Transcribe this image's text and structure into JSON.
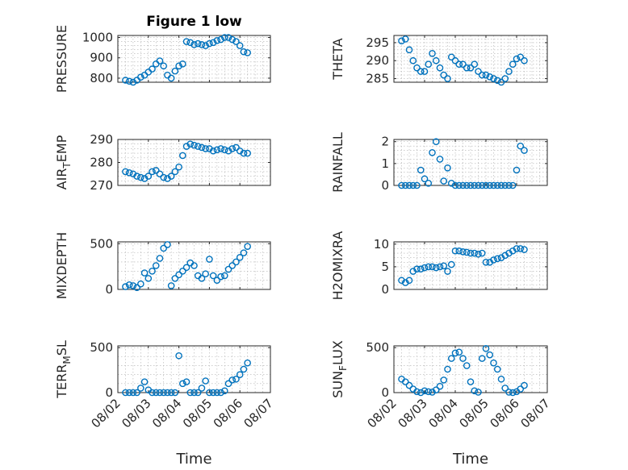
{
  "figure": {
    "marker_color": "#0072BD",
    "axis_color": "#262626",
    "grid": true,
    "minor_grid": true
  },
  "chart_data": [
    {
      "type": "scatter",
      "title": "Figure 1 low",
      "ylabel": "PRESSURE",
      "xlabel": "",
      "xlim": [
        "08/02",
        "08/07"
      ],
      "ylim": [
        780,
        1010
      ],
      "yticks": [
        800,
        900,
        1000
      ],
      "xticks": [
        "08/02",
        "08/03",
        "08/04",
        "08/05",
        "08/06",
        "08/07"
      ],
      "show_xtick_labels": false,
      "x": [
        "08/02 06:00",
        "08/02 09:00",
        "08/02 12:00",
        "08/02 15:00",
        "08/02 18:00",
        "08/02 21:00",
        "08/03 00:00",
        "08/03 03:00",
        "08/03 06:00",
        "08/03 09:00",
        "08/03 12:00",
        "08/03 15:00",
        "08/03 18:00",
        "08/03 21:00",
        "08/04 00:00",
        "08/04 03:00",
        "08/04 06:00",
        "08/04 09:00",
        "08/04 12:00",
        "08/04 15:00",
        "08/04 18:00",
        "08/04 21:00",
        "08/05 00:00",
        "08/05 03:00",
        "08/05 06:00",
        "08/05 09:00",
        "08/05 12:00",
        "08/05 15:00",
        "08/05 18:00",
        "08/05 21:00",
        "08/06 00:00",
        "08/06 03:00",
        "08/06 06:00"
      ],
      "y": [
        790,
        785,
        780,
        790,
        805,
        815,
        830,
        845,
        870,
        885,
        860,
        815,
        800,
        835,
        860,
        870,
        980,
        975,
        965,
        970,
        965,
        960,
        970,
        975,
        985,
        990,
        1000,
        1000,
        990,
        980,
        960,
        930,
        925
      ]
    },
    {
      "type": "scatter",
      "ylabel": "THETA",
      "xlabel": "",
      "xlim": [
        "08/02",
        "08/07"
      ],
      "ylim": [
        284,
        297
      ],
      "yticks": [
        285,
        290,
        295
      ],
      "xticks": [
        "08/02",
        "08/03",
        "08/04",
        "08/05",
        "08/06",
        "08/07"
      ],
      "show_xtick_labels": false,
      "x": [
        "08/02 06:00",
        "08/02 09:00",
        "08/02 12:00",
        "08/02 15:00",
        "08/02 18:00",
        "08/02 21:00",
        "08/03 00:00",
        "08/03 03:00",
        "08/03 06:00",
        "08/03 09:00",
        "08/03 12:00",
        "08/03 15:00",
        "08/03 18:00",
        "08/03 21:00",
        "08/04 00:00",
        "08/04 03:00",
        "08/04 06:00",
        "08/04 09:00",
        "08/04 12:00",
        "08/04 15:00",
        "08/04 18:00",
        "08/04 21:00",
        "08/05 00:00",
        "08/05 03:00",
        "08/05 06:00",
        "08/05 09:00",
        "08/05 12:00",
        "08/05 15:00",
        "08/05 18:00",
        "08/05 21:00",
        "08/06 00:00",
        "08/06 03:00",
        "08/06 06:00"
      ],
      "y": [
        295.5,
        296,
        293,
        290,
        288,
        287,
        287,
        289,
        292,
        290,
        288,
        286,
        285,
        291,
        290,
        289,
        289,
        288,
        288,
        289,
        287,
        286,
        286,
        285.5,
        285,
        284.5,
        284,
        285,
        287,
        289,
        290.5,
        291,
        290
      ]
    },
    {
      "type": "scatter",
      "ylabel": "AIR_TEMP",
      "ylabel_main": "AIR",
      "ylabel_sub": "T",
      "ylabel_rest": "EMP",
      "xlabel": "",
      "xlim": [
        "08/02",
        "08/07"
      ],
      "ylim": [
        270,
        290
      ],
      "yticks": [
        270,
        280,
        290
      ],
      "xticks": [
        "08/02",
        "08/03",
        "08/04",
        "08/05",
        "08/06",
        "08/07"
      ],
      "show_xtick_labels": false,
      "x": [
        "08/02 06:00",
        "08/02 09:00",
        "08/02 12:00",
        "08/02 15:00",
        "08/02 18:00",
        "08/02 21:00",
        "08/03 00:00",
        "08/03 03:00",
        "08/03 06:00",
        "08/03 09:00",
        "08/03 12:00",
        "08/03 15:00",
        "08/03 18:00",
        "08/03 21:00",
        "08/04 00:00",
        "08/04 03:00",
        "08/04 06:00",
        "08/04 09:00",
        "08/04 12:00",
        "08/04 15:00",
        "08/04 18:00",
        "08/04 21:00",
        "08/05 00:00",
        "08/05 03:00",
        "08/05 06:00",
        "08/05 09:00",
        "08/05 12:00",
        "08/05 15:00",
        "08/05 18:00",
        "08/05 21:00",
        "08/06 00:00",
        "08/06 03:00",
        "08/06 06:00"
      ],
      "y": [
        276,
        275.5,
        275,
        274,
        273.5,
        273,
        274,
        276,
        276.5,
        275,
        273.5,
        273,
        274,
        276,
        278,
        283,
        287,
        288,
        287.5,
        287,
        286.5,
        286,
        286,
        285,
        285.5,
        286,
        285.5,
        285,
        286,
        286.5,
        285,
        284,
        284
      ]
    },
    {
      "type": "scatter",
      "ylabel": "RAINFALL",
      "xlabel": "",
      "xlim": [
        "08/02",
        "08/07"
      ],
      "ylim": [
        0,
        2.1
      ],
      "yticks": [
        0,
        1,
        2
      ],
      "xticks": [
        "08/02",
        "08/03",
        "08/04",
        "08/05",
        "08/06",
        "08/07"
      ],
      "show_xtick_labels": false,
      "x": [
        "08/02 06:00",
        "08/02 09:00",
        "08/02 12:00",
        "08/02 15:00",
        "08/02 18:00",
        "08/02 21:00",
        "08/03 00:00",
        "08/03 03:00",
        "08/03 06:00",
        "08/03 09:00",
        "08/03 12:00",
        "08/03 15:00",
        "08/03 18:00",
        "08/03 21:00",
        "08/04 00:00",
        "08/04 03:00",
        "08/04 06:00",
        "08/04 09:00",
        "08/04 12:00",
        "08/04 15:00",
        "08/04 18:00",
        "08/04 21:00",
        "08/05 00:00",
        "08/05 03:00",
        "08/05 06:00",
        "08/05 09:00",
        "08/05 12:00",
        "08/05 15:00",
        "08/05 18:00",
        "08/05 21:00",
        "08/06 00:00",
        "08/06 03:00",
        "08/06 06:00"
      ],
      "y": [
        0,
        0,
        0,
        0,
        0,
        0.7,
        0.3,
        0.1,
        1.5,
        2.0,
        1.2,
        0.2,
        0.8,
        0.1,
        0,
        0,
        0,
        0,
        0,
        0,
        0,
        0,
        0,
        0,
        0,
        0,
        0,
        0,
        0,
        0,
        0.7,
        1.8,
        1.6
      ]
    },
    {
      "type": "scatter",
      "ylabel": "MIXDEPTH",
      "xlabel": "",
      "xlim": [
        "08/02",
        "08/07"
      ],
      "ylim": [
        0,
        520
      ],
      "yticks": [
        0,
        500
      ],
      "xticks": [
        "08/02",
        "08/03",
        "08/04",
        "08/05",
        "08/06",
        "08/07"
      ],
      "show_xtick_labels": false,
      "x": [
        "08/02 06:00",
        "08/02 09:00",
        "08/02 12:00",
        "08/02 15:00",
        "08/02 18:00",
        "08/02 21:00",
        "08/03 00:00",
        "08/03 03:00",
        "08/03 06:00",
        "08/03 09:00",
        "08/03 12:00",
        "08/03 15:00",
        "08/03 18:00",
        "08/03 21:00",
        "08/04 00:00",
        "08/04 03:00",
        "08/04 06:00",
        "08/04 09:00",
        "08/04 12:00",
        "08/04 15:00",
        "08/04 18:00",
        "08/04 21:00",
        "08/05 00:00",
        "08/05 03:00",
        "08/05 06:00",
        "08/05 09:00",
        "08/05 12:00",
        "08/05 15:00",
        "08/05 18:00",
        "08/05 21:00",
        "08/06 00:00",
        "08/06 03:00",
        "08/06 06:00"
      ],
      "y": [
        30,
        50,
        40,
        20,
        60,
        180,
        120,
        200,
        260,
        340,
        450,
        490,
        40,
        120,
        160,
        200,
        240,
        290,
        260,
        150,
        120,
        170,
        330,
        150,
        100,
        140,
        150,
        220,
        260,
        300,
        350,
        400,
        470
      ]
    },
    {
      "type": "scatter",
      "ylabel": "H2OMIXRA",
      "xlabel": "",
      "xlim": [
        "08/02",
        "08/07"
      ],
      "ylim": [
        0,
        10.5
      ],
      "yticks": [
        0,
        5,
        10
      ],
      "xticks": [
        "08/02",
        "08/03",
        "08/04",
        "08/05",
        "08/06",
        "08/07"
      ],
      "show_xtick_labels": false,
      "x": [
        "08/02 06:00",
        "08/02 09:00",
        "08/02 12:00",
        "08/02 15:00",
        "08/02 18:00",
        "08/02 21:00",
        "08/03 00:00",
        "08/03 03:00",
        "08/03 06:00",
        "08/03 09:00",
        "08/03 12:00",
        "08/03 15:00",
        "08/03 18:00",
        "08/03 21:00",
        "08/04 00:00",
        "08/04 03:00",
        "08/04 06:00",
        "08/04 09:00",
        "08/04 12:00",
        "08/04 15:00",
        "08/04 18:00",
        "08/04 21:00",
        "08/05 00:00",
        "08/05 03:00",
        "08/05 06:00",
        "08/05 09:00",
        "08/05 12:00",
        "08/05 15:00",
        "08/05 18:00",
        "08/05 21:00",
        "08/06 00:00",
        "08/06 03:00",
        "08/06 06:00"
      ],
      "y": [
        2,
        1.5,
        2,
        4,
        4.5,
        4.5,
        4.8,
        5,
        5,
        4.8,
        5,
        5.2,
        4,
        5.5,
        8.5,
        8.5,
        8.3,
        8.2,
        8,
        8,
        7.8,
        8,
        6,
        6,
        6.5,
        6.8,
        7,
        7.5,
        8,
        8.5,
        9,
        9,
        8.8
      ]
    },
    {
      "type": "scatter",
      "ylabel": "TERR_MSL",
      "ylabel_main": "TERR",
      "ylabel_sub": "M",
      "ylabel_rest": "SL",
      "xlabel": "Time",
      "xlim": [
        "08/02",
        "08/07"
      ],
      "ylim": [
        0,
        520
      ],
      "yticks": [
        0,
        500
      ],
      "xticks": [
        "08/02",
        "08/03",
        "08/04",
        "08/05",
        "08/06",
        "08/07"
      ],
      "show_xtick_labels": true,
      "x": [
        "08/02 06:00",
        "08/02 09:00",
        "08/02 12:00",
        "08/02 15:00",
        "08/02 18:00",
        "08/02 21:00",
        "08/03 00:00",
        "08/03 03:00",
        "08/03 06:00",
        "08/03 09:00",
        "08/03 12:00",
        "08/03 15:00",
        "08/03 18:00",
        "08/03 21:00",
        "08/04 00:00",
        "08/04 03:00",
        "08/04 06:00",
        "08/04 09:00",
        "08/04 12:00",
        "08/04 15:00",
        "08/04 18:00",
        "08/04 21:00",
        "08/05 00:00",
        "08/05 03:00",
        "08/05 06:00",
        "08/05 09:00",
        "08/05 12:00",
        "08/05 15:00",
        "08/05 18:00",
        "08/05 21:00",
        "08/06 00:00",
        "08/06 03:00",
        "08/06 06:00"
      ],
      "y": [
        0,
        0,
        0,
        0,
        50,
        120,
        30,
        0,
        0,
        0,
        0,
        0,
        0,
        0,
        410,
        100,
        120,
        0,
        0,
        0,
        50,
        130,
        0,
        0,
        0,
        0,
        20,
        100,
        140,
        150,
        200,
        260,
        330
      ]
    },
    {
      "type": "scatter",
      "ylabel": "SUN_FLUX",
      "ylabel_main": "SUN",
      "ylabel_sub": "F",
      "ylabel_rest": "LUX",
      "xlabel": "Time",
      "xlim": [
        "08/02",
        "08/07"
      ],
      "ylim": [
        0,
        520
      ],
      "yticks": [
        0,
        500
      ],
      "xticks": [
        "08/02",
        "08/03",
        "08/04",
        "08/05",
        "08/06",
        "08/07"
      ],
      "show_xtick_labels": true,
      "x": [
        "08/02 06:00",
        "08/02 09:00",
        "08/02 12:00",
        "08/02 15:00",
        "08/02 18:00",
        "08/02 21:00",
        "08/03 00:00",
        "08/03 03:00",
        "08/03 06:00",
        "08/03 09:00",
        "08/03 12:00",
        "08/03 15:00",
        "08/03 18:00",
        "08/03 21:00",
        "08/04 00:00",
        "08/04 03:00",
        "08/04 06:00",
        "08/04 09:00",
        "08/04 12:00",
        "08/04 15:00",
        "08/04 18:00",
        "08/04 21:00",
        "08/05 00:00",
        "08/05 03:00",
        "08/05 06:00",
        "08/05 09:00",
        "08/05 12:00",
        "08/05 15:00",
        "08/05 18:00",
        "08/05 21:00",
        "08/06 00:00",
        "08/06 03:00",
        "08/06 06:00"
      ],
      "y": [
        150,
        120,
        80,
        40,
        10,
        0,
        20,
        10,
        5,
        30,
        70,
        140,
        260,
        380,
        440,
        450,
        380,
        300,
        120,
        20,
        5,
        380,
        490,
        420,
        330,
        260,
        150,
        50,
        5,
        0,
        10,
        40,
        80
      ]
    }
  ]
}
